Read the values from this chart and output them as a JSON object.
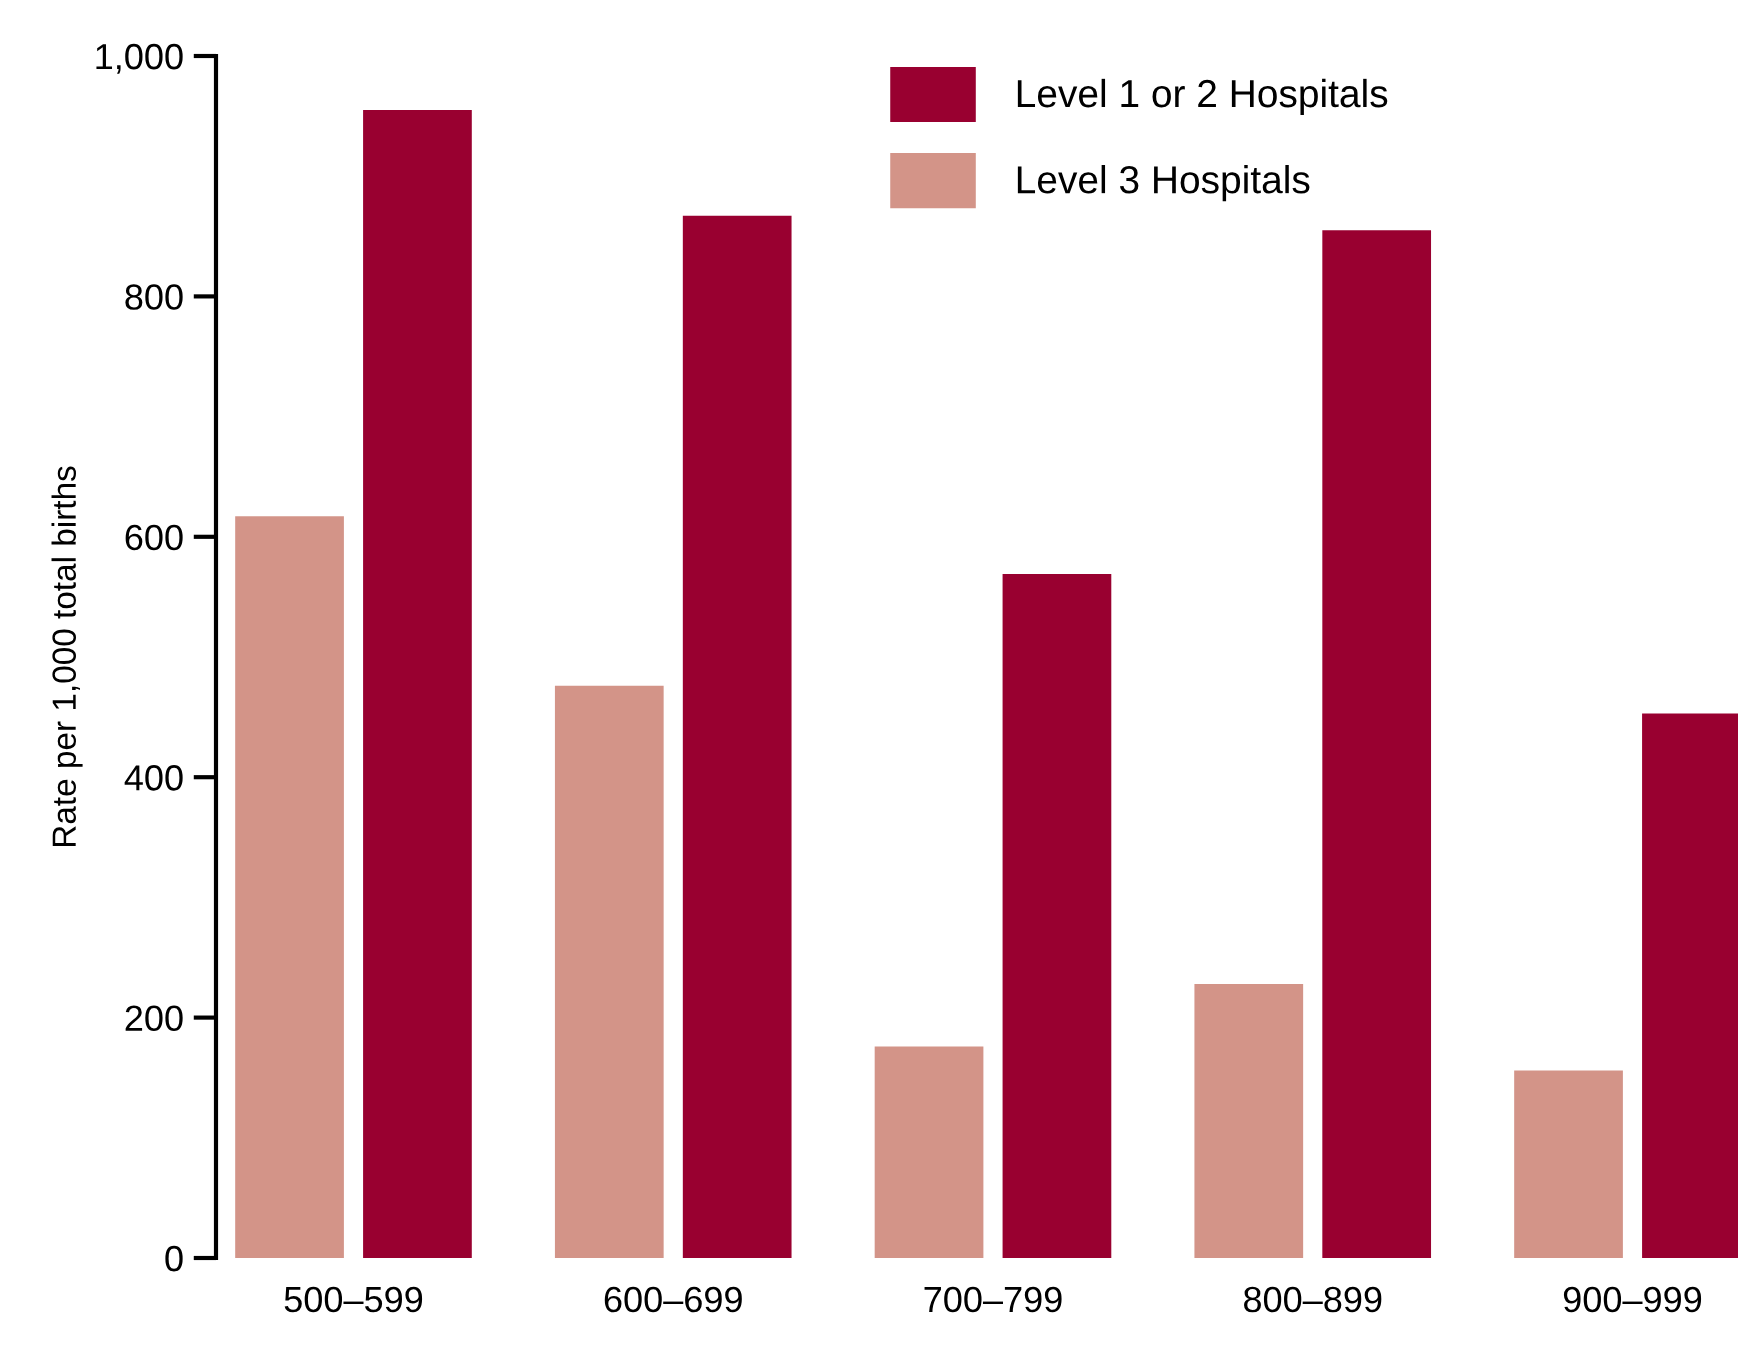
{
  "chart_data": {
    "type": "bar",
    "ylabel": "Rate per 1,000 total births",
    "categories": [
      "500–599",
      "600–699",
      "700–799",
      "800–899",
      "900–999"
    ],
    "series": [
      {
        "name": "Level 3 Hospitals",
        "color": "#d39488",
        "values": [
          617,
          476,
          176,
          228,
          156
        ]
      },
      {
        "name": "Level 1 or 2 Hospitals",
        "color": "#990030",
        "values": [
          955,
          867,
          569,
          855,
          453
        ]
      }
    ],
    "ylim": [
      0,
      1000
    ],
    "yticks": [
      0,
      200,
      400,
      600,
      800,
      {
        "value": 1000,
        "label": "1,000"
      }
    ],
    "grid": false,
    "legend": "top right"
  }
}
